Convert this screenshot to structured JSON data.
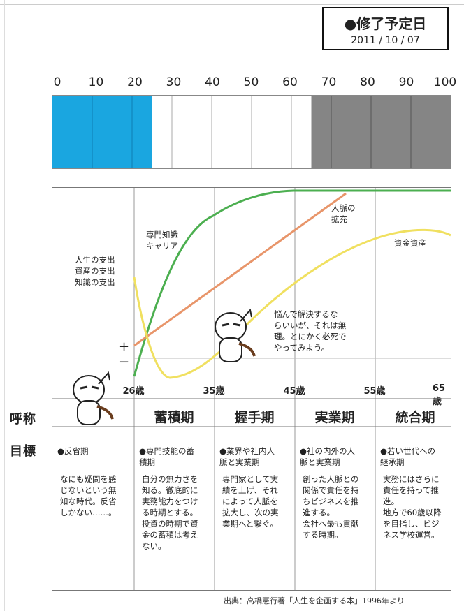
{
  "header": {
    "title": "●修了予定日",
    "date": "2011 / 10 / 07"
  },
  "scale": {
    "ticks": [
      "0",
      "10",
      "20",
      "30",
      "40",
      "50",
      "60",
      "70",
      "80",
      "90",
      "100"
    ],
    "blue_until": 25,
    "gray_from": 65,
    "blue_color": "#1aa6e0",
    "gray_color": "#858585"
  },
  "labels": {
    "yobi": "呼称",
    "mokuhyo": "目標"
  },
  "chart_data": {
    "type": "line",
    "x_ages": [
      "26歳",
      "35歳",
      "45歳",
      "55歳",
      "65歳"
    ],
    "series": [
      {
        "name": "専門知識\nキャリア",
        "color": "#4caf50"
      },
      {
        "name": "人脈の\n拡充",
        "color": "#e8956a"
      },
      {
        "name": "資金資産",
        "color": "#f0e060"
      }
    ],
    "left_note": [
      "人生の支出",
      "資産の支出",
      "知識の支出"
    ],
    "plus": "+",
    "minus": "−",
    "bubble": [
      "悩んで解決するな",
      "らいいが、それは無",
      "理。とにかく必死で",
      "やってみよう。"
    ]
  },
  "phases": [
    "蓄積期",
    "握手期",
    "実業期",
    "統合期"
  ],
  "targets": [
    {
      "title": [
        "●反省期"
      ],
      "body": [
        "なにも疑問を感",
        "じないという無",
        "知な時代。反省",
        "しかない……。"
      ]
    },
    {
      "title": [
        "●専門技能の蓄",
        "積期"
      ],
      "body": [
        "自分の無力さを",
        "知る。徹底的に",
        "実務能力をつけ",
        "る時期とする。",
        "投資の時期で資",
        "金の蓄積は考え",
        "ない。"
      ]
    },
    {
      "title": [
        "●業界や社内人",
        "脈と実業期"
      ],
      "body": [
        "専門家として実",
        "績を上げ、それ",
        "によって人脈を",
        "拡大し、次の実",
        "業期へと繋ぐ。"
      ]
    },
    {
      "title": [
        "●社の内外の人",
        "脈と実業期"
      ],
      "body": [
        "創った人脈との",
        "関係で責任を持",
        "ちビジネスを推",
        "進する。",
        "会社へ最も貢献",
        "する時期。"
      ]
    },
    {
      "title": [
        "●若い世代への",
        "継承期"
      ],
      "body": [
        "実務にはさらに",
        "責任を持って推",
        "進。",
        "地方で60歳以降",
        "を目指し、ビジ",
        "ネス学校運営。"
      ]
    }
  ],
  "source": "出典：高橋憲行著「人生を企画する本」1996年より"
}
